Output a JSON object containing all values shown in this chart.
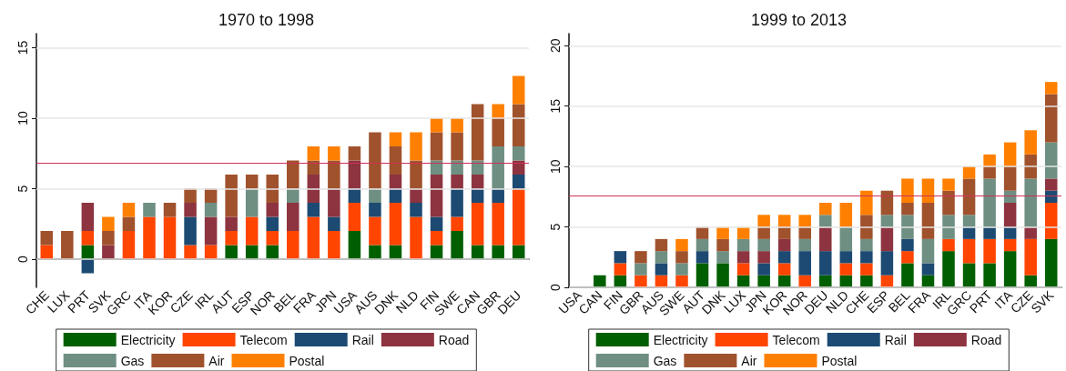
{
  "chart_data": [
    {
      "type": "bar",
      "title": "1970 to 1998",
      "stacked": true,
      "grid": "y",
      "legend": "bottom",
      "categories": [
        "CHE",
        "LUX",
        "PRT",
        "SVK",
        "GRC",
        "ITA",
        "KOR",
        "CZE",
        "IRL",
        "AUT",
        "ESP",
        "NOR",
        "BEL",
        "FRA",
        "JPN",
        "USA",
        "AUS",
        "DNK",
        "NLD",
        "FIN",
        "SWE",
        "CAN",
        "GBR",
        "DEU"
      ],
      "ylim": [
        -2,
        16
      ],
      "yticks": [
        0,
        5,
        10,
        15
      ],
      "ref_lines": [
        {
          "axis": "y",
          "value": 6.8,
          "color": "#d0305a"
        }
      ],
      "series": [
        {
          "name": "Electricity",
          "color": "#005f00",
          "values": [
            0,
            0,
            1,
            0,
            0,
            0,
            0,
            0,
            0,
            1,
            1,
            1,
            0,
            0,
            0,
            2,
            1,
            1,
            0,
            1,
            2,
            1,
            1,
            1
          ]
        },
        {
          "name": "Telecom",
          "color": "#ff4500",
          "values": [
            1,
            0,
            1,
            0,
            2,
            3,
            3,
            1,
            1,
            1,
            2,
            1,
            2,
            3,
            2,
            2,
            2,
            3,
            3,
            1,
            1,
            3,
            3,
            4
          ]
        },
        {
          "name": "Rail",
          "color": "#1c4a72",
          "values": [
            0,
            0,
            -1,
            0,
            0,
            0,
            0,
            2,
            0,
            0,
            0,
            1,
            0,
            1,
            1,
            1,
            1,
            1,
            1,
            1,
            2,
            1,
            1,
            1
          ]
        },
        {
          "name": "Road",
          "color": "#8e3440",
          "values": [
            0,
            0,
            2,
            1,
            0,
            0,
            0,
            1,
            2,
            1,
            0,
            1,
            2,
            2,
            2,
            2,
            0,
            1,
            1,
            3,
            1,
            1,
            0,
            1
          ]
        },
        {
          "name": "Gas",
          "color": "#6e8f82",
          "values": [
            0,
            0,
            0,
            0,
            0,
            1,
            0,
            0,
            1,
            0,
            2,
            0,
            1,
            0,
            0,
            0,
            1,
            0,
            0,
            1,
            1,
            1,
            3,
            1
          ]
        },
        {
          "name": "Air",
          "color": "#a0522d",
          "values": [
            1,
            2,
            0,
            1,
            1,
            0,
            1,
            1,
            1,
            3,
            1,
            2,
            2,
            1,
            2,
            1,
            4,
            2,
            2,
            2,
            2,
            4,
            2,
            3
          ]
        },
        {
          "name": "Postal",
          "color": "#ff8000",
          "values": [
            0,
            0,
            0,
            1,
            1,
            0,
            0,
            0,
            0,
            0,
            0,
            0,
            0,
            1,
            1,
            0,
            0,
            1,
            2,
            1,
            1,
            0,
            1,
            2
          ]
        }
      ]
    },
    {
      "type": "bar",
      "title": "1999 to 2013",
      "stacked": true,
      "grid": "y",
      "legend": "bottom",
      "categories": [
        "USA",
        "CAN",
        "FIN",
        "GBR",
        "AUS",
        "SWE",
        "AUT",
        "DNK",
        "LUX",
        "JPN",
        "KOR",
        "NOR",
        "DEU",
        "NLD",
        "CHE",
        "ESP",
        "BEL",
        "FRA",
        "IRL",
        "GRC",
        "PRT",
        "ITA",
        "CZE",
        "SVK"
      ],
      "ylim": [
        0,
        21
      ],
      "yticks": [
        0,
        5,
        10,
        15,
        20
      ],
      "ref_lines": [
        {
          "axis": "y",
          "value": 7.6,
          "color": "#d0305a"
        }
      ],
      "series": [
        {
          "name": "Electricity",
          "color": "#005f00",
          "values": [
            0,
            1,
            1,
            0,
            0,
            0,
            2,
            2,
            1,
            1,
            1,
            0,
            1,
            1,
            1,
            0,
            2,
            1,
            3,
            2,
            2,
            3,
            1,
            4
          ]
        },
        {
          "name": "Telecom",
          "color": "#ff4500",
          "values": [
            0,
            0,
            1,
            1,
            1,
            1,
            0,
            0,
            1,
            0,
            1,
            1,
            0,
            1,
            1,
            1,
            1,
            0,
            1,
            2,
            2,
            1,
            3,
            3
          ]
        },
        {
          "name": "Rail",
          "color": "#1c4a72",
          "values": [
            0,
            0,
            1,
            0,
            1,
            0,
            1,
            0,
            0,
            1,
            1,
            2,
            2,
            1,
            1,
            2,
            1,
            1,
            0,
            1,
            1,
            1,
            0,
            1
          ]
        },
        {
          "name": "Road",
          "color": "#8e3440",
          "values": [
            0,
            0,
            0,
            0,
            0,
            0,
            0,
            0,
            1,
            1,
            1,
            0,
            2,
            0,
            0,
            2,
            0,
            0,
            0,
            0,
            0,
            2,
            1,
            1
          ]
        },
        {
          "name": "Gas",
          "color": "#6e8f82",
          "values": [
            0,
            0,
            0,
            1,
            1,
            1,
            1,
            1,
            1,
            1,
            0,
            1,
            1,
            2,
            1,
            1,
            2,
            2,
            2,
            1,
            4,
            1,
            4,
            3
          ]
        },
        {
          "name": "Air",
          "color": "#a0522d",
          "values": [
            0,
            0,
            0,
            1,
            1,
            1,
            1,
            1,
            0,
            1,
            1,
            1,
            0,
            0,
            2,
            2,
            1,
            3,
            2,
            3,
            1,
            2,
            2,
            4
          ]
        },
        {
          "name": "Postal",
          "color": "#ff8000",
          "values": [
            0,
            0,
            0,
            0,
            0,
            1,
            0,
            1,
            1,
            1,
            1,
            1,
            1,
            2,
            2,
            0,
            2,
            2,
            1,
            1,
            1,
            2,
            2,
            1
          ]
        }
      ]
    }
  ]
}
